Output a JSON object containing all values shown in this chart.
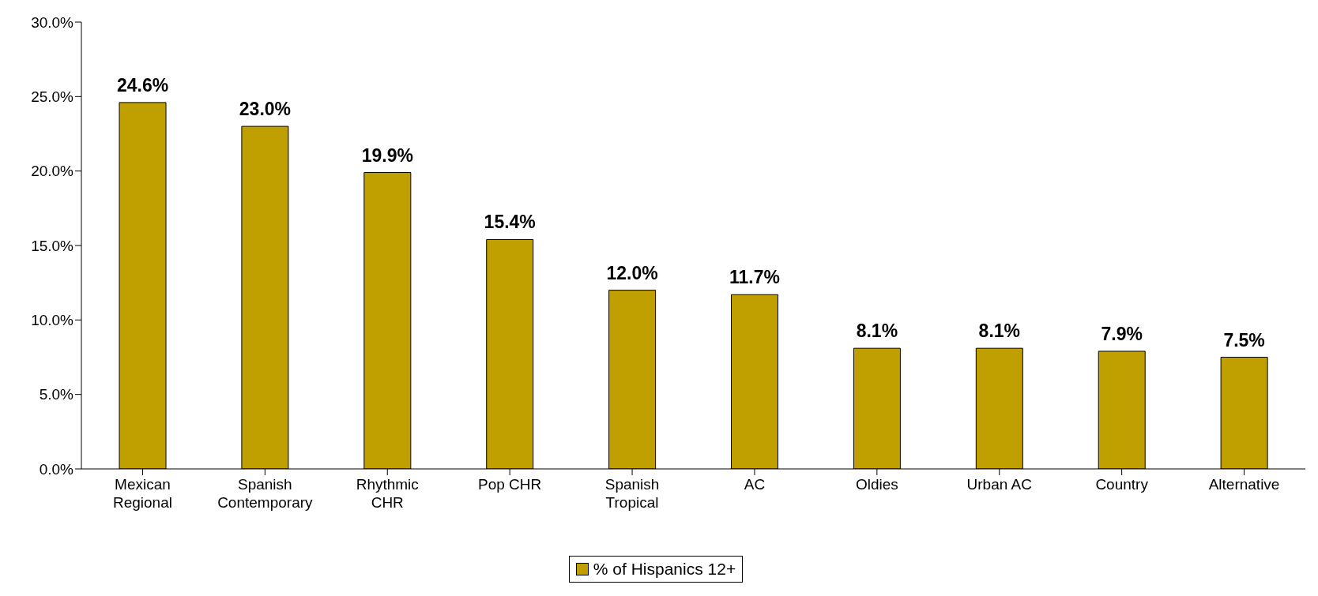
{
  "chart_data": {
    "type": "bar",
    "categories": [
      "Mexican Regional",
      "Spanish Contemporary",
      "Rhythmic CHR",
      "Pop CHR",
      "Spanish Tropical",
      "AC",
      "Oldies",
      "Urban AC",
      "Country",
      "Alternative"
    ],
    "series": [
      {
        "name": "% of Hispanics 12+",
        "color": "#c0a000",
        "values": [
          24.6,
          23.0,
          19.9,
          15.4,
          12.0,
          11.7,
          8.1,
          8.1,
          7.9,
          7.5
        ],
        "value_labels": [
          "24.6%",
          "23.0%",
          "19.9%",
          "15.4%",
          "12.0%",
          "11.7%",
          "8.1%",
          "8.1%",
          "7.9%",
          "7.5%"
        ]
      }
    ],
    "ylim": [
      0,
      30
    ],
    "yticks": [
      {
        "value": 0,
        "label": "0.0%"
      },
      {
        "value": 5,
        "label": "5.0%"
      },
      {
        "value": 10,
        "label": "10.0%"
      },
      {
        "value": 15,
        "label": "15.0%"
      },
      {
        "value": 20,
        "label": "20.0%"
      },
      {
        "value": 25,
        "label": "25.0%"
      },
      {
        "value": 30,
        "label": "30.0%"
      }
    ],
    "grid": false,
    "legend": "bottom"
  }
}
